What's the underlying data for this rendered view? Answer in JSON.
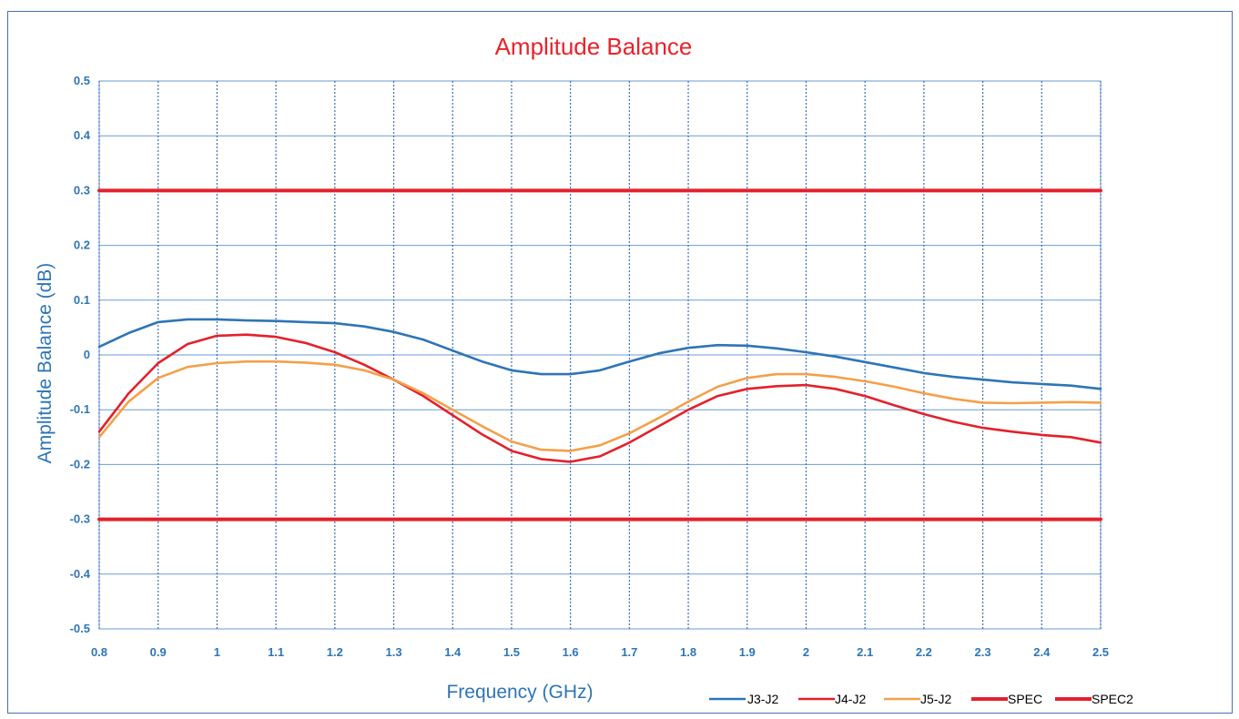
{
  "chart_data": {
    "type": "line",
    "title": "Amplitude Balance",
    "xlabel": "Frequency (GHz)",
    "ylabel": "Amplitude Balance (dB)",
    "xlim": [
      0.8,
      2.5
    ],
    "ylim": [
      -0.5,
      0.5
    ],
    "grid": true,
    "legend_position": "bottom-right",
    "x_ticks": [
      0.8,
      0.9,
      1,
      1.1,
      1.2,
      1.3,
      1.4,
      1.5,
      1.6,
      1.7,
      1.8,
      1.9,
      2,
      2.1,
      2.2,
      2.3,
      2.4,
      2.5
    ],
    "x_tick_labels": [
      "0.8",
      "0.9",
      "1",
      "1.1",
      "1.2",
      "1.3",
      "1.4",
      "1.5",
      "1.6",
      "1.7",
      "1.8",
      "1.9",
      "2",
      "2.1",
      "2.2",
      "2.3",
      "2.4",
      "2.5"
    ],
    "y_ticks": [
      0.5,
      0.4,
      0.3,
      0.2,
      0.1,
      0,
      -0.1,
      -0.2,
      -0.3,
      -0.4,
      -0.5
    ],
    "y_tick_labels": [
      "0.5",
      "0.4",
      "0.3",
      "0.2",
      "0.1",
      "0",
      "-0.1",
      "-0.2",
      "-0.3",
      "-0.4",
      "-0.5"
    ],
    "series": [
      {
        "name": "J3-J2",
        "color": "#2e75b6",
        "x": [
          0.8,
          0.85,
          0.9,
          0.95,
          1.0,
          1.05,
          1.1,
          1.15,
          1.2,
          1.25,
          1.3,
          1.35,
          1.4,
          1.45,
          1.5,
          1.55,
          1.6,
          1.65,
          1.7,
          1.75,
          1.8,
          1.85,
          1.9,
          1.95,
          2.0,
          2.05,
          2.1,
          2.15,
          2.2,
          2.25,
          2.3,
          2.35,
          2.4,
          2.45,
          2.5
        ],
        "y": [
          0.015,
          0.04,
          0.06,
          0.065,
          0.065,
          0.063,
          0.062,
          0.06,
          0.058,
          0.052,
          0.042,
          0.028,
          0.008,
          -0.012,
          -0.028,
          -0.035,
          -0.035,
          -0.028,
          -0.012,
          0.003,
          0.013,
          0.018,
          0.017,
          0.012,
          0.005,
          -0.003,
          -0.013,
          -0.023,
          -0.033,
          -0.04,
          -0.045,
          -0.05,
          -0.053,
          -0.056,
          -0.062
        ]
      },
      {
        "name": "J4-J2",
        "color": "#e3212b",
        "x": [
          0.8,
          0.85,
          0.9,
          0.95,
          1.0,
          1.05,
          1.1,
          1.15,
          1.2,
          1.25,
          1.3,
          1.35,
          1.4,
          1.45,
          1.5,
          1.55,
          1.6,
          1.65,
          1.7,
          1.75,
          1.8,
          1.85,
          1.9,
          1.95,
          2.0,
          2.05,
          2.1,
          2.15,
          2.2,
          2.25,
          2.3,
          2.35,
          2.4,
          2.45,
          2.5
        ],
        "y": [
          -0.14,
          -0.07,
          -0.015,
          0.02,
          0.035,
          0.037,
          0.033,
          0.022,
          0.005,
          -0.018,
          -0.045,
          -0.075,
          -0.11,
          -0.145,
          -0.175,
          -0.19,
          -0.195,
          -0.185,
          -0.16,
          -0.13,
          -0.1,
          -0.075,
          -0.062,
          -0.057,
          -0.055,
          -0.062,
          -0.075,
          -0.092,
          -0.108,
          -0.122,
          -0.133,
          -0.14,
          -0.146,
          -0.15,
          -0.16
        ]
      },
      {
        "name": "J5-J2",
        "color": "#f4a04a",
        "x": [
          0.8,
          0.85,
          0.9,
          0.95,
          1.0,
          1.05,
          1.1,
          1.15,
          1.2,
          1.25,
          1.3,
          1.35,
          1.4,
          1.45,
          1.5,
          1.55,
          1.6,
          1.65,
          1.7,
          1.75,
          1.8,
          1.85,
          1.9,
          1.95,
          2.0,
          2.05,
          2.1,
          2.15,
          2.2,
          2.25,
          2.3,
          2.35,
          2.4,
          2.45,
          2.5
        ],
        "y": [
          -0.15,
          -0.085,
          -0.042,
          -0.022,
          -0.015,
          -0.012,
          -0.012,
          -0.014,
          -0.018,
          -0.028,
          -0.045,
          -0.07,
          -0.1,
          -0.13,
          -0.158,
          -0.173,
          -0.175,
          -0.165,
          -0.143,
          -0.115,
          -0.085,
          -0.058,
          -0.042,
          -0.035,
          -0.035,
          -0.04,
          -0.048,
          -0.058,
          -0.07,
          -0.08,
          -0.087,
          -0.088,
          -0.087,
          -0.086,
          -0.087
        ]
      },
      {
        "name": "SPEC",
        "color": "#e3212b",
        "x": [
          0.8,
          2.5
        ],
        "y": [
          0.3,
          0.3
        ]
      },
      {
        "name": "SPEC2",
        "color": "#e3212b",
        "x": [
          0.8,
          2.5
        ],
        "y": [
          -0.3,
          -0.3
        ]
      }
    ]
  }
}
